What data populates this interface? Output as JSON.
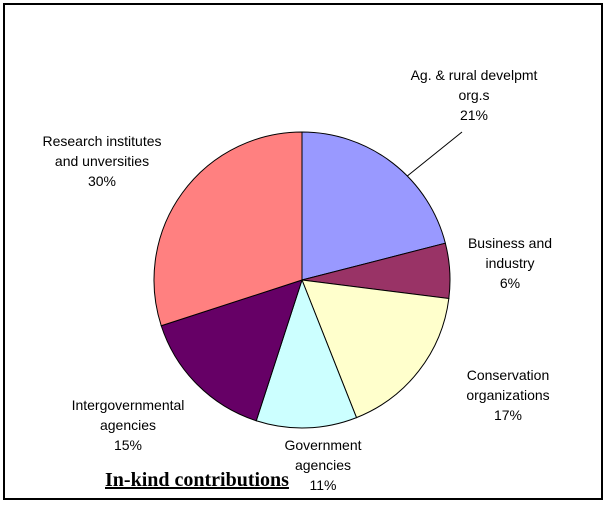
{
  "chart_data": {
    "type": "pie",
    "title": "In-kind contributions",
    "slices": [
      {
        "label_lines": [
          "Ag. & rural develpmt",
          "org.s"
        ],
        "value": 21,
        "pct_text": "21%",
        "color": "#9999FF"
      },
      {
        "label_lines": [
          "Business and",
          "industry"
        ],
        "value": 6,
        "pct_text": "6%",
        "color": "#993366"
      },
      {
        "label_lines": [
          "Conservation",
          "organizations"
        ],
        "value": 17,
        "pct_text": "17%",
        "color": "#FFFFCC"
      },
      {
        "label_lines": [
          "Government",
          "agencies"
        ],
        "value": 11,
        "pct_text": "11%",
        "color": "#CCFFFF"
      },
      {
        "label_lines": [
          "Intergovernmental",
          "agencies"
        ],
        "value": 15,
        "pct_text": "15%",
        "color": "#660066"
      },
      {
        "label_lines": [
          "Research institutes",
          "and unversities"
        ],
        "value": 30,
        "pct_text": "30%",
        "color": "#FF8080"
      }
    ]
  }
}
